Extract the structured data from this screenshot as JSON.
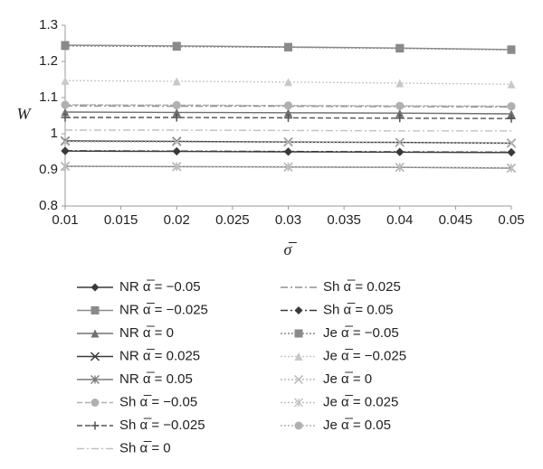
{
  "chart_data": {
    "type": "line",
    "y_label": "W",
    "x_label": "σ̅",
    "x": [
      0.01,
      0.02,
      0.03,
      0.04,
      0.05
    ],
    "xlim": [
      0.01,
      0.05
    ],
    "xticks": [
      0.01,
      0.015,
      0.02,
      0.025,
      0.03,
      0.035,
      0.04,
      0.045,
      0.05
    ],
    "ylim": [
      0.8,
      1.3
    ],
    "yticks": [
      0.8,
      0.9,
      1,
      1.1,
      1.2,
      1.3
    ],
    "series": [
      {
        "name": "NR α̅ = −0.05",
        "color": "#3a3a3a",
        "marker": "diamond",
        "dash": "solid",
        "values": [
          0.952,
          0.951,
          0.95,
          0.949,
          0.948
        ]
      },
      {
        "name": "NR α̅ = −0.025",
        "color": "#8a8a8a",
        "marker": "square",
        "dash": "solid",
        "values": [
          1.245,
          1.243,
          1.24,
          1.237,
          1.233
        ]
      },
      {
        "name": "NR α̅ = 0",
        "color": "#707070",
        "marker": "triangle",
        "dash": "solid",
        "values": [
          1.06,
          1.059,
          1.058,
          1.057,
          1.055
        ]
      },
      {
        "name": "NR α̅ = 0.025",
        "color": "#3a3a3a",
        "marker": "x",
        "dash": "solid",
        "values": [
          0.98,
          0.979,
          0.977,
          0.976,
          0.974
        ]
      },
      {
        "name": "NR α̅ = 0.05",
        "color": "#7a7a7a",
        "marker": "asterisk",
        "dash": "solid",
        "values": [
          0.91,
          0.909,
          0.908,
          0.907,
          0.905
        ]
      },
      {
        "name": "Sh α̅ = −0.05",
        "color": "#b0b0b0",
        "marker": "circle",
        "dash": "dashed",
        "values": [
          1.08,
          1.079,
          1.078,
          1.077,
          1.076
        ]
      },
      {
        "name": "Sh α̅ = −0.025",
        "color": "#555555",
        "marker": "plus",
        "dash": "dashed",
        "values": [
          1.045,
          1.045,
          1.044,
          1.043,
          1.042
        ]
      },
      {
        "name": "Sh α̅ = 0",
        "color": "#c0c0c0",
        "marker": "none",
        "dash": "dashdot",
        "values": [
          1.01,
          1.01,
          1.009,
          1.008,
          1.008
        ]
      },
      {
        "name": "Sh α̅ = 0.025",
        "color": "#909090",
        "marker": "none",
        "dash": "dashdot",
        "values": [
          1.077,
          1.076,
          1.076,
          1.075,
          1.074
        ]
      },
      {
        "name": "Sh α̅ = 0.05",
        "color": "#3a3a3a",
        "marker": "diamond",
        "dash": "dashdot",
        "values": [
          0.953,
          0.952,
          0.951,
          0.95,
          0.949
        ]
      },
      {
        "name": "Je α̅ = −0.05",
        "color": "#8a8a8a",
        "marker": "square",
        "dash": "dotted",
        "values": [
          1.243,
          1.241,
          1.239,
          1.236,
          1.232
        ]
      },
      {
        "name": "Je α̅ = −0.025",
        "color": "#c8c8c8",
        "marker": "triangle",
        "dash": "dotted",
        "values": [
          1.147,
          1.145,
          1.143,
          1.14,
          1.137
        ]
      },
      {
        "name": "Je α̅ = 0",
        "color": "#b8b8b8",
        "marker": "x",
        "dash": "dotted",
        "values": [
          0.978,
          0.977,
          0.976,
          0.975,
          0.973
        ]
      },
      {
        "name": "Je α̅ = 0.025",
        "color": "#c0c0c0",
        "marker": "asterisk",
        "dash": "dotted",
        "values": [
          0.911,
          0.91,
          0.909,
          0.908,
          0.906
        ]
      },
      {
        "name": "Je α̅ = 0.05",
        "color": "#b0b0b0",
        "marker": "circle",
        "dash": "dotted",
        "values": [
          1.08,
          1.079,
          1.078,
          1.077,
          1.076
        ]
      }
    ]
  }
}
